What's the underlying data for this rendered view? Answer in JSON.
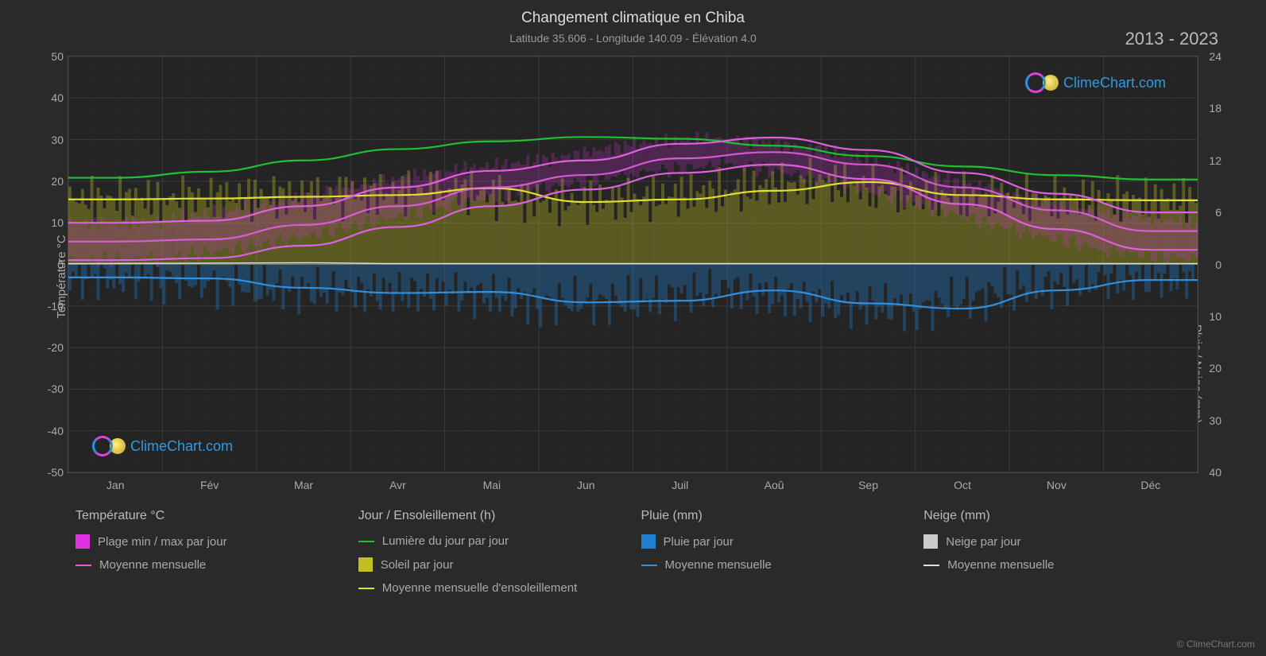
{
  "title": "Changement climatique en Chiba",
  "subtitle": "Latitude 35.606 - Longitude 140.09 - Élévation 4.0",
  "year_range": "2013 - 2023",
  "watermark_text": "ClimeChart.com",
  "copyright": "© ClimeChart.com",
  "colors": {
    "background": "#2a2a2a",
    "plot_bg": "#242424",
    "grid": "#3a3a3a",
    "text": "#aaaaaa",
    "temp_range": "#e030e0",
    "temp_mean": "#e060e0",
    "daylight": "#20c030",
    "sunshine": "#c0c020",
    "sunshine_mean": "#e0e030",
    "rain": "#2080d0",
    "rain_mean": "#3090e0",
    "snow": "#cccccc",
    "snow_mean": "#dddddd",
    "brand": "#2e9ae0"
  },
  "axes": {
    "y_left": {
      "label": "Température °C",
      "min": -50,
      "max": 50,
      "ticks": [
        -50,
        -40,
        -30,
        -20,
        -10,
        0,
        10,
        20,
        30,
        40,
        50
      ]
    },
    "y_right_top": {
      "label": "Jour / Ensoleillement (h)",
      "min": 0,
      "max": 24,
      "ticks": [
        0,
        6,
        12,
        18,
        24
      ]
    },
    "y_right_bot": {
      "label": "Pluie / Neige (mm)",
      "min": 0,
      "max": 40,
      "ticks": [
        0,
        10,
        20,
        30,
        40
      ]
    },
    "x": {
      "labels": [
        "Jan",
        "Fév",
        "Mar",
        "Avr",
        "Mai",
        "Jun",
        "Juil",
        "Aoû",
        "Sep",
        "Oct",
        "Nov",
        "Déc"
      ]
    }
  },
  "series": {
    "daylight": [
      10.0,
      10.7,
      12.0,
      13.3,
      14.2,
      14.7,
      14.5,
      13.7,
      12.5,
      11.3,
      10.3,
      9.8
    ],
    "sunshine_mean": [
      7.5,
      7.6,
      7.8,
      8.0,
      8.8,
      7.2,
      7.5,
      8.5,
      9.5,
      8.0,
      7.5,
      7.4
    ],
    "temp_mean": [
      5.5,
      6.0,
      9.5,
      14.0,
      18.5,
      21.5,
      25.5,
      27.0,
      24.0,
      18.5,
      13.0,
      8.0
    ],
    "temp_min": [
      1.0,
      1.5,
      4.5,
      9.0,
      14.0,
      18.0,
      22.0,
      24.0,
      20.5,
      14.5,
      8.5,
      3.5
    ],
    "temp_max": [
      10.0,
      10.5,
      14.0,
      18.5,
      22.5,
      25.0,
      29.0,
      30.5,
      27.5,
      22.0,
      17.0,
      12.5
    ],
    "rain_mean": [
      2.5,
      2.7,
      4.5,
      5.5,
      5.3,
      7.3,
      7.0,
      5.0,
      7.5,
      8.5,
      5.0,
      3.0
    ]
  },
  "legend": {
    "temp": {
      "title": "Température °C",
      "items": [
        {
          "label": "Plage min / max par jour",
          "swatch_color": "#e030e0",
          "type": "box"
        },
        {
          "label": "Moyenne mensuelle",
          "swatch_color": "#e060e0",
          "type": "line"
        }
      ]
    },
    "daylight": {
      "title": "Jour / Ensoleillement (h)",
      "items": [
        {
          "label": "Lumière du jour par jour",
          "swatch_color": "#20c030",
          "type": "line"
        },
        {
          "label": "Soleil par jour",
          "swatch_color": "#c0c020",
          "type": "box"
        },
        {
          "label": "Moyenne mensuelle d'ensoleillement",
          "swatch_color": "#e0e030",
          "type": "line"
        }
      ]
    },
    "rain": {
      "title": "Pluie (mm)",
      "items": [
        {
          "label": "Pluie par jour",
          "swatch_color": "#2080d0",
          "type": "box"
        },
        {
          "label": "Moyenne mensuelle",
          "swatch_color": "#3090e0",
          "type": "line"
        }
      ]
    },
    "snow": {
      "title": "Neige (mm)",
      "items": [
        {
          "label": "Neige par jour",
          "swatch_color": "#cccccc",
          "type": "box"
        },
        {
          "label": "Moyenne mensuelle",
          "swatch_color": "#dddddd",
          "type": "line"
        }
      ]
    }
  },
  "chart_layout": {
    "fine_grid_per_month": 4,
    "daily_bar_opacity": 0.35,
    "line_width": 2.2
  }
}
